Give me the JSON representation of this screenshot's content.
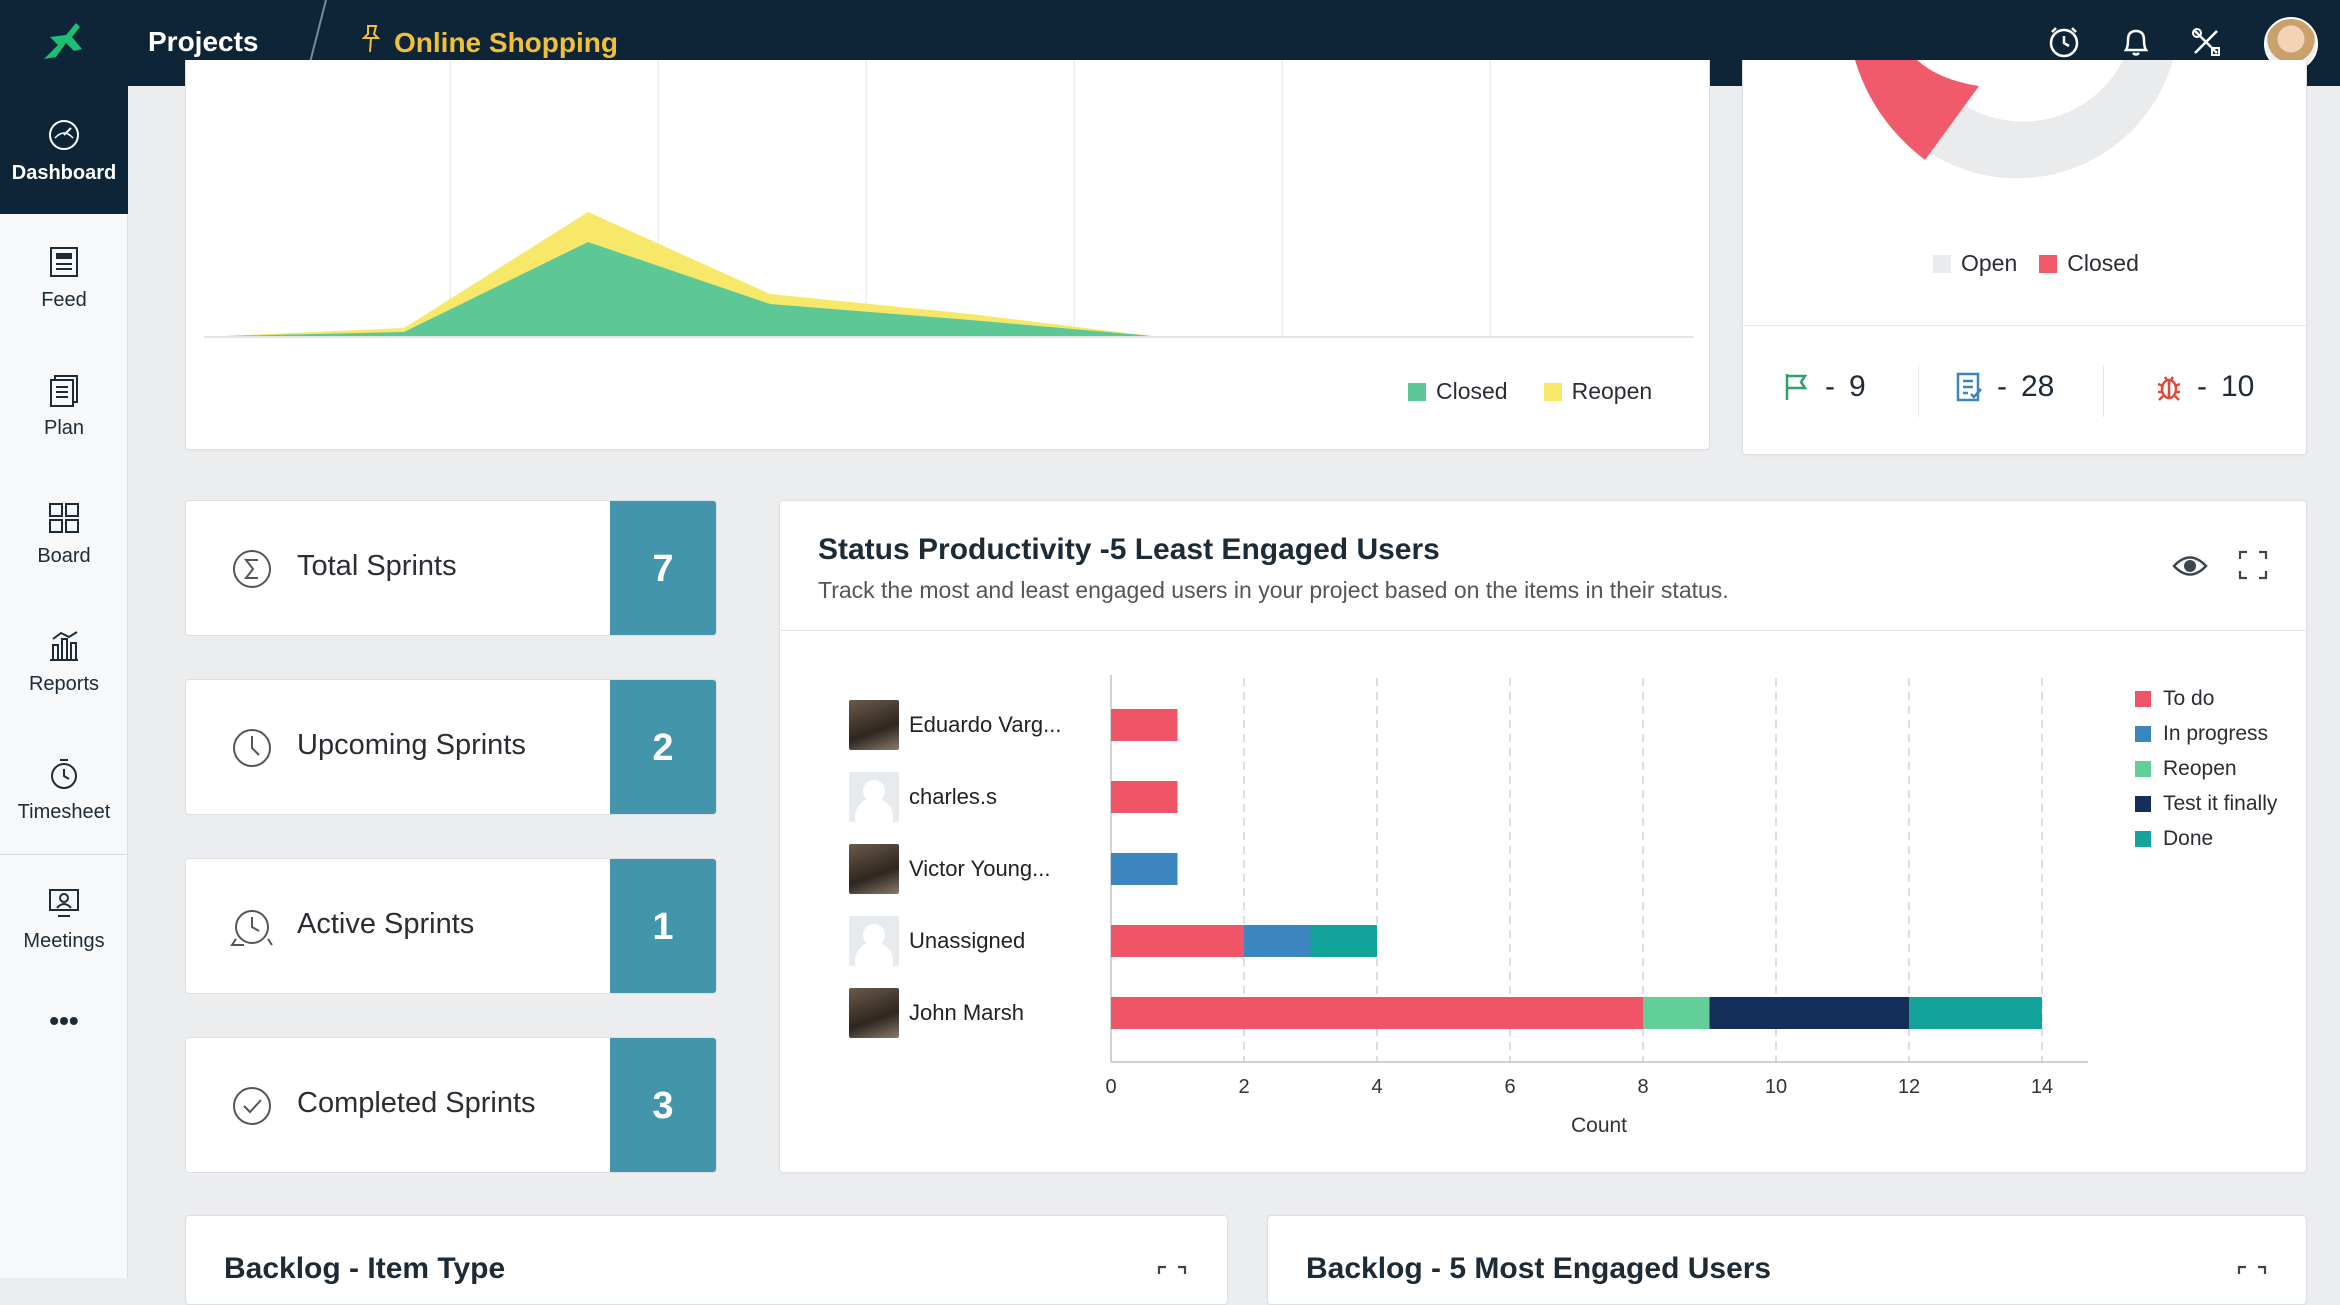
{
  "topbar": {
    "projects_label": "Projects",
    "project_name": "Online Shopping",
    "icons": [
      "timer-icon",
      "bell-icon",
      "tools-icon"
    ]
  },
  "sidebar": {
    "items": [
      {
        "label": "Dashboard",
        "icon": "dashboard-icon",
        "active": true
      },
      {
        "label": "Feed",
        "icon": "feed-icon"
      },
      {
        "label": "Plan",
        "icon": "plan-icon"
      },
      {
        "label": "Board",
        "icon": "board-icon"
      },
      {
        "label": "Reports",
        "icon": "reports-icon"
      },
      {
        "label": "Timesheet",
        "icon": "timesheet-icon"
      },
      {
        "label": "Meetings",
        "icon": "meetings-icon"
      }
    ],
    "more_label": "•••"
  },
  "area_chart": {
    "legend": [
      {
        "label": "Closed",
        "color": "#5DC896"
      },
      {
        "label": "Reopen",
        "color": "#F7E86A"
      }
    ]
  },
  "donut_card": {
    "legend": [
      {
        "label": "Open",
        "color": "#E9EBED"
      },
      {
        "label": "Closed",
        "color": "#F05A6B"
      }
    ],
    "stats": [
      {
        "icon": "flag-icon",
        "value": "9"
      },
      {
        "icon": "task-icon",
        "value": "28"
      },
      {
        "icon": "bug-icon",
        "value": "10"
      }
    ]
  },
  "sprints": [
    {
      "label": "Total Sprints",
      "value": "7",
      "icon": "sigma-icon"
    },
    {
      "label": "Upcoming Sprints",
      "value": "2",
      "icon": "clock-icon"
    },
    {
      "label": "Active Sprints",
      "value": "1",
      "icon": "active-clock-icon"
    },
    {
      "label": "Completed Sprints",
      "value": "3",
      "icon": "check-circle-icon"
    }
  ],
  "status_productivity": {
    "title": "Status Productivity -5 Least Engaged Users",
    "subtitle": "Track the most and least engaged users in your project based on the items in their status."
  },
  "chart_data": {
    "type": "bar",
    "orientation": "horizontal",
    "stacked": true,
    "categories": [
      "Eduardo Varg...",
      "charles.s",
      "Victor Young...",
      "Unassigned",
      "John Marsh"
    ],
    "series": [
      {
        "name": "To do",
        "color": "#EF5566",
        "values": [
          1,
          1,
          0,
          2,
          8
        ]
      },
      {
        "name": "In progress",
        "color": "#3C86C0",
        "values": [
          0,
          0,
          1,
          1,
          0
        ]
      },
      {
        "name": "Reopen",
        "color": "#62CF98",
        "values": [
          0,
          0,
          0,
          0,
          1
        ]
      },
      {
        "name": "Test it finally",
        "color": "#14305A",
        "values": [
          0,
          0,
          0,
          0,
          3
        ]
      },
      {
        "name": "Done",
        "color": "#12A39A",
        "values": [
          0,
          0,
          0,
          1,
          2
        ]
      }
    ],
    "xlabel": "Count",
    "xlim": [
      0,
      15
    ],
    "xticks": [
      "0",
      "2",
      "4",
      "6",
      "8",
      "10",
      "12",
      "14"
    ],
    "grid": true,
    "legend_position": "right"
  },
  "bottom_cards": [
    {
      "title": "Backlog - Item Type"
    },
    {
      "title": "Backlog - 5 Most Engaged Users"
    }
  ]
}
